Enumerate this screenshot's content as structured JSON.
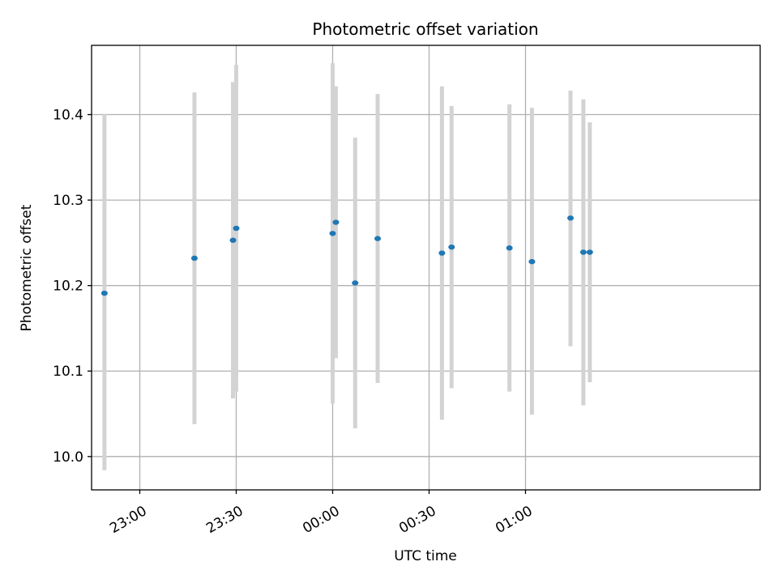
{
  "chart_data": {
    "type": "scatter",
    "title": "Photometric offset variation",
    "xlabel": "UTC time",
    "ylabel": "Photometric offset",
    "x_axis": "time (UTC, HH:MM)",
    "xlim": [
      "22:45",
      "02:13"
    ],
    "ylim": [
      9.961,
      10.481
    ],
    "x_ticks": [
      "23:00",
      "23:30",
      "00:00",
      "00:30",
      "01:00"
    ],
    "y_ticks": [
      "10.0",
      "10.1",
      "10.2",
      "10.3",
      "10.4"
    ],
    "grid": true,
    "legend": "none",
    "colors": {
      "marker": "#1f77b4",
      "errorbar": "#d3d3d3",
      "grid": "#b0b0b0"
    },
    "series": [
      {
        "points": [
          {
            "x": "22:49",
            "y": 10.191,
            "yerr_low": 9.984,
            "yerr_high": 10.401
          },
          {
            "x": "23:17",
            "y": 10.232,
            "yerr_low": 10.038,
            "yerr_high": 10.426
          },
          {
            "x": "23:29",
            "y": 10.253,
            "yerr_low": 10.068,
            "yerr_high": 10.438
          },
          {
            "x": "23:30",
            "y": 10.267,
            "yerr_low": 10.076,
            "yerr_high": 10.458
          },
          {
            "x": "00:00",
            "y": 10.261,
            "yerr_low": 10.062,
            "yerr_high": 10.46
          },
          {
            "x": "00:01",
            "y": 10.274,
            "yerr_low": 10.115,
            "yerr_high": 10.433
          },
          {
            "x": "00:07",
            "y": 10.203,
            "yerr_low": 10.033,
            "yerr_high": 10.373
          },
          {
            "x": "00:14",
            "y": 10.255,
            "yerr_low": 10.086,
            "yerr_high": 10.424
          },
          {
            "x": "00:34",
            "y": 10.238,
            "yerr_low": 10.043,
            "yerr_high": 10.433
          },
          {
            "x": "00:37",
            "y": 10.245,
            "yerr_low": 10.08,
            "yerr_high": 10.41
          },
          {
            "x": "00:55",
            "y": 10.244,
            "yerr_low": 10.076,
            "yerr_high": 10.412
          },
          {
            "x": "01:02",
            "y": 10.228,
            "yerr_low": 10.049,
            "yerr_high": 10.408
          },
          {
            "x": "01:14",
            "y": 10.279,
            "yerr_low": 10.129,
            "yerr_high": 10.428
          },
          {
            "x": "01:18",
            "y": 10.239,
            "yerr_low": 10.06,
            "yerr_high": 10.418
          },
          {
            "x": "01:20",
            "y": 10.239,
            "yerr_low": 10.087,
            "yerr_high": 10.391
          }
        ]
      }
    ]
  }
}
